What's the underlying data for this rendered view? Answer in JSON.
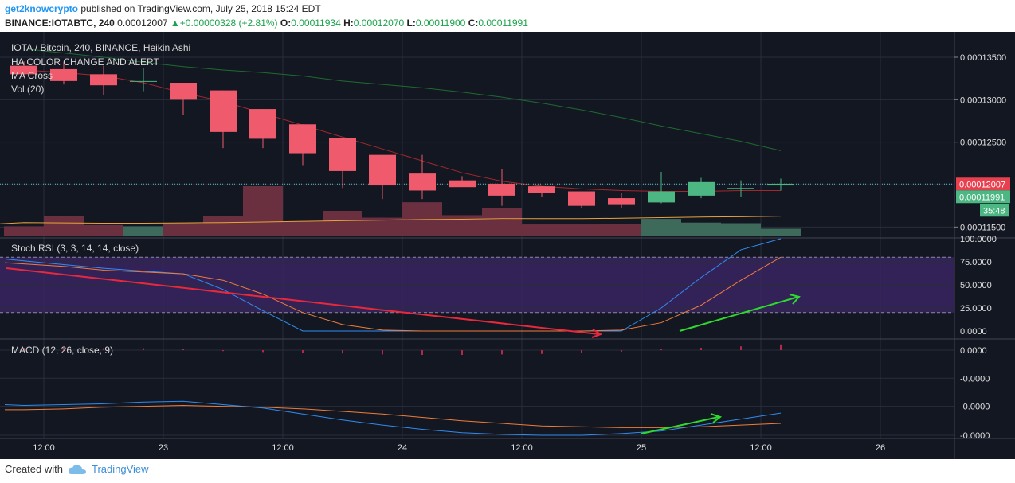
{
  "header": {
    "user": "get2knowcrypto",
    "published_text": "published on TradingView.com, July 25, 2018 15:24 EDT",
    "symbol_line": "BINANCE:IOTABTC, 240",
    "last": "0.00012007",
    "change": "+0.00000328 (+2.81%)",
    "o_label": "O:",
    "o_value": "0.00011934",
    "h_label": "H:",
    "h_value": "0.00012070",
    "l_label": "L:",
    "l_value": "0.00011900",
    "c_label": "C:",
    "c_value": "0.00011991"
  },
  "legend": {
    "title": "IOTA / Bitcoin, 240, BINANCE, Heikin Ashi",
    "ha": "HA COLOR CHANGE AND ALERT",
    "ma": "MA Cross",
    "vol": "Vol (20)",
    "stoch": "Stoch RSI (3, 3, 14, 14, close)",
    "macd": "MACD (12, 26, close, 9)"
  },
  "price_axis": {
    "ticks": [
      "0.00013500",
      "0.00013000",
      "0.00012500",
      "0.00011500"
    ],
    "last_label": "0.00012007",
    "close_label": "0.00011991",
    "countdown": "35:48"
  },
  "stoch_axis": {
    "ticks": [
      "100.0000",
      "75.0000",
      "50.0000",
      "25.0000",
      "0.0000"
    ]
  },
  "macd_axis": {
    "ticks": [
      "0.0000",
      "-0.0000",
      "-0.0000",
      "-0.0000"
    ]
  },
  "time_axis": {
    "labels": [
      "12:00",
      "23",
      "12:00",
      "24",
      "12:00",
      "25",
      "12:00",
      "26"
    ]
  },
  "footer": {
    "created_with": "Created with",
    "brand": "TradingView"
  },
  "colors": {
    "background": "#131722",
    "bear": "#ef5b6c",
    "bull": "#4cb782",
    "ma_fast": "#a3272d",
    "ma_slow": "#1f6a30",
    "vol_ma": "#e8a23c",
    "stoch_k": "#2f8cf0",
    "stoch_d": "#ef7c3a",
    "stoch_band": "#3a2460",
    "arrow_red": "#e8283c",
    "arrow_green": "#2ddb2d"
  },
  "chart_data": [
    {
      "type": "candlestick",
      "title": "IOTA / Bitcoin, 240, BINANCE, Heikin Ashi",
      "ylim": [
        0.000114,
        0.000138
      ],
      "candles": [
        {
          "o": 0.000134,
          "h": 0.0001345,
          "l": 0.0001328,
          "c": 0.000133
        },
        {
          "o": 0.0001336,
          "h": 0.0001345,
          "l": 0.0001318,
          "c": 0.0001322
        },
        {
          "o": 0.000133,
          "h": 0.000134,
          "l": 0.0001305,
          "c": 0.0001317
        },
        {
          "o": 0.0001322,
          "h": 0.0001337,
          "l": 0.000131,
          "c": 0.0001322
        },
        {
          "o": 0.000132,
          "h": 0.000132,
          "l": 0.0001282,
          "c": 0.00013
        },
        {
          "o": 0.0001311,
          "h": 0.0001311,
          "l": 0.0001243,
          "c": 0.0001262
        },
        {
          "o": 0.0001289,
          "h": 0.0001289,
          "l": 0.0001243,
          "c": 0.0001254
        },
        {
          "o": 0.0001271,
          "h": 0.0001271,
          "l": 0.0001223,
          "c": 0.0001237
        },
        {
          "o": 0.0001255,
          "h": 0.0001255,
          "l": 0.0001196,
          "c": 0.0001216
        },
        {
          "o": 0.0001235,
          "h": 0.0001235,
          "l": 0.0001183,
          "c": 0.0001199
        },
        {
          "o": 0.0001213,
          "h": 0.0001235,
          "l": 0.0001183,
          "c": 0.0001193
        },
        {
          "o": 0.0001205,
          "h": 0.000121,
          "l": 0.0001198,
          "c": 0.0001197
        },
        {
          "o": 0.0001201,
          "h": 0.0001218,
          "l": 0.0001175,
          "c": 0.0001187
        },
        {
          "o": 0.0001198,
          "h": 0.0001198,
          "l": 0.0001185,
          "c": 0.000119
        },
        {
          "o": 0.0001192,
          "h": 0.0001192,
          "l": 0.0001172,
          "c": 0.0001175
        },
        {
          "o": 0.0001184,
          "h": 0.000119,
          "l": 0.0001172,
          "c": 0.0001176
        },
        {
          "o": 0.0001179,
          "h": 0.0001215,
          "l": 0.0001178,
          "c": 0.0001192
        },
        {
          "o": 0.0001187,
          "h": 0.0001208,
          "l": 0.0001184,
          "c": 0.0001203
        },
        {
          "o": 0.0001195,
          "h": 0.0001205,
          "l": 0.0001185,
          "c": 0.0001196
        },
        {
          "o": 0.0001199,
          "h": 0.0001207,
          "l": 0.0001193,
          "c": 0.0001201
        }
      ],
      "ma_fast": [
        0.0001335,
        0.0001332,
        0.0001328,
        0.000132,
        0.0001308,
        0.0001298,
        0.0001284,
        0.000127,
        0.0001256,
        0.0001242,
        0.0001228,
        0.0001214,
        0.0001204,
        0.0001198,
        0.0001195,
        0.0001193,
        0.0001192,
        0.0001192,
        0.0001193,
        0.0001193
      ],
      "ma_slow": [
        0.000136,
        0.0001355,
        0.000135,
        0.0001344,
        0.0001339,
        0.0001335,
        0.0001332,
        0.0001328,
        0.0001322,
        0.0001318,
        0.0001314,
        0.0001309,
        0.0001303,
        0.0001296,
        0.0001288,
        0.0001279,
        0.0001269,
        0.000126,
        0.0001251,
        0.000124
      ],
      "volume": [
        0.3,
        0.62,
        0.34,
        0.3,
        0.4,
        0.62,
        1.6,
        0.46,
        0.8,
        0.58,
        1.08,
        0.66,
        0.9,
        0.36,
        0.36,
        0.38,
        0.54,
        0.42,
        0.4,
        0.22
      ],
      "volume_ma": [
        0.42,
        0.41,
        0.4,
        0.4,
        0.41,
        0.42,
        0.44,
        0.46,
        0.48,
        0.5,
        0.52,
        0.53,
        0.55,
        0.55,
        0.55,
        0.56,
        0.58,
        0.6,
        0.61,
        0.63
      ]
    },
    {
      "type": "line",
      "title": "Stoch RSI (3, 3, 14, 14, close)",
      "ylim": [
        0,
        100
      ],
      "series": [
        {
          "name": "K",
          "values": [
            78,
            72,
            68,
            65,
            62,
            45,
            22,
            0,
            0,
            0,
            0,
            0,
            0,
            0,
            0,
            0,
            25,
            58,
            88,
            100
          ]
        },
        {
          "name": "D",
          "values": [
            74,
            70,
            66,
            64,
            62,
            55,
            40,
            20,
            7,
            1,
            0,
            0,
            0,
            0,
            0,
            1,
            9,
            28,
            55,
            80
          ]
        }
      ]
    },
    {
      "type": "line",
      "title": "MACD (12, 26, close, 9)",
      "ylim": [
        -1.1,
        0.1
      ],
      "series": [
        {
          "name": "MACD",
          "values": [
            -0.65,
            -0.64,
            -0.63,
            -0.61,
            -0.6,
            -0.64,
            -0.68,
            -0.75,
            -0.82,
            -0.88,
            -0.93,
            -0.97,
            -0.99,
            -1.0,
            -1.0,
            -0.98,
            -0.95,
            -0.88,
            -0.81,
            -0.74
          ]
        },
        {
          "name": "Signal",
          "values": [
            -0.7,
            -0.69,
            -0.67,
            -0.66,
            -0.65,
            -0.66,
            -0.67,
            -0.69,
            -0.72,
            -0.75,
            -0.79,
            -0.83,
            -0.86,
            -0.89,
            -0.9,
            -0.91,
            -0.91,
            -0.9,
            -0.88,
            -0.86
          ]
        }
      ],
      "histogram": [
        0.05,
        0.05,
        0.04,
        0.04,
        0.02,
        -0.02,
        -0.04,
        -0.06,
        -0.07,
        -0.09,
        -0.1,
        -0.1,
        -0.09,
        -0.08,
        -0.06,
        -0.03,
        0.02,
        0.05,
        0.08,
        0.12
      ]
    }
  ]
}
